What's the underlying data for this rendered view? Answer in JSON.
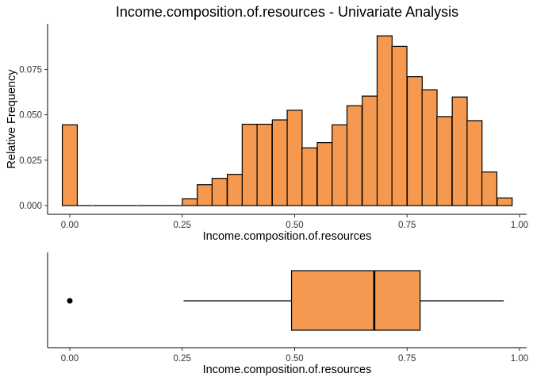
{
  "chart_data": [
    {
      "type": "bar",
      "title": "Income.composition.of.resources - Univariate Analysis",
      "xlabel": "Income.composition.of.resources",
      "ylabel": "Relative Frequency",
      "fill_color": "#F4994F",
      "bin_width": 0.0333,
      "bins": [
        {
          "x": 0.0,
          "y": 0.0445
        },
        {
          "x": 0.033,
          "y": 0.0
        },
        {
          "x": 0.067,
          "y": 0.0
        },
        {
          "x": 0.1,
          "y": 0.0
        },
        {
          "x": 0.133,
          "y": 0.0
        },
        {
          "x": 0.167,
          "y": 0.0
        },
        {
          "x": 0.2,
          "y": 0.0
        },
        {
          "x": 0.267,
          "y": 0.0037
        },
        {
          "x": 0.3,
          "y": 0.0115
        },
        {
          "x": 0.333,
          "y": 0.015
        },
        {
          "x": 0.367,
          "y": 0.0172
        },
        {
          "x": 0.4,
          "y": 0.0448
        },
        {
          "x": 0.433,
          "y": 0.0448
        },
        {
          "x": 0.467,
          "y": 0.0472
        },
        {
          "x": 0.5,
          "y": 0.0525
        },
        {
          "x": 0.533,
          "y": 0.0318
        },
        {
          "x": 0.567,
          "y": 0.0347
        },
        {
          "x": 0.6,
          "y": 0.0445
        },
        {
          "x": 0.633,
          "y": 0.055
        },
        {
          "x": 0.667,
          "y": 0.0603
        },
        {
          "x": 0.7,
          "y": 0.0935
        },
        {
          "x": 0.733,
          "y": 0.0877
        },
        {
          "x": 0.767,
          "y": 0.071
        },
        {
          "x": 0.8,
          "y": 0.0638
        },
        {
          "x": 0.833,
          "y": 0.049
        },
        {
          "x": 0.867,
          "y": 0.0598
        },
        {
          "x": 0.9,
          "y": 0.0468
        },
        {
          "x": 0.933,
          "y": 0.0185
        },
        {
          "x": 0.967,
          "y": 0.0042
        }
      ],
      "xlim": [
        -0.0167,
        0.9833
      ],
      "ylim": [
        0,
        0.0975
      ],
      "x_ticks": [
        0,
        0.25,
        0.5,
        0.75,
        1
      ],
      "x_tick_labels": [
        "0.00",
        "0.25",
        "0.50",
        "0.75",
        "1.00"
      ],
      "y_ticks": [
        0,
        0.025,
        0.05,
        0.075
      ],
      "y_tick_labels": [
        "0.000",
        "0.025",
        "0.050",
        "0.075"
      ],
      "grid": false
    },
    {
      "type": "box",
      "xlabel": "Income.composition.of.resources",
      "fill_color": "#F4994F",
      "min": 0.253,
      "q1": 0.493,
      "median": 0.677,
      "q3": 0.779,
      "max": 0.965,
      "outliers": [
        0.0
      ],
      "x_ticks": [
        0,
        0.25,
        0.5,
        0.75,
        1
      ],
      "x_tick_labels": [
        "0.00",
        "0.25",
        "0.50",
        "0.75",
        "1.00"
      ],
      "grid": false
    }
  ]
}
